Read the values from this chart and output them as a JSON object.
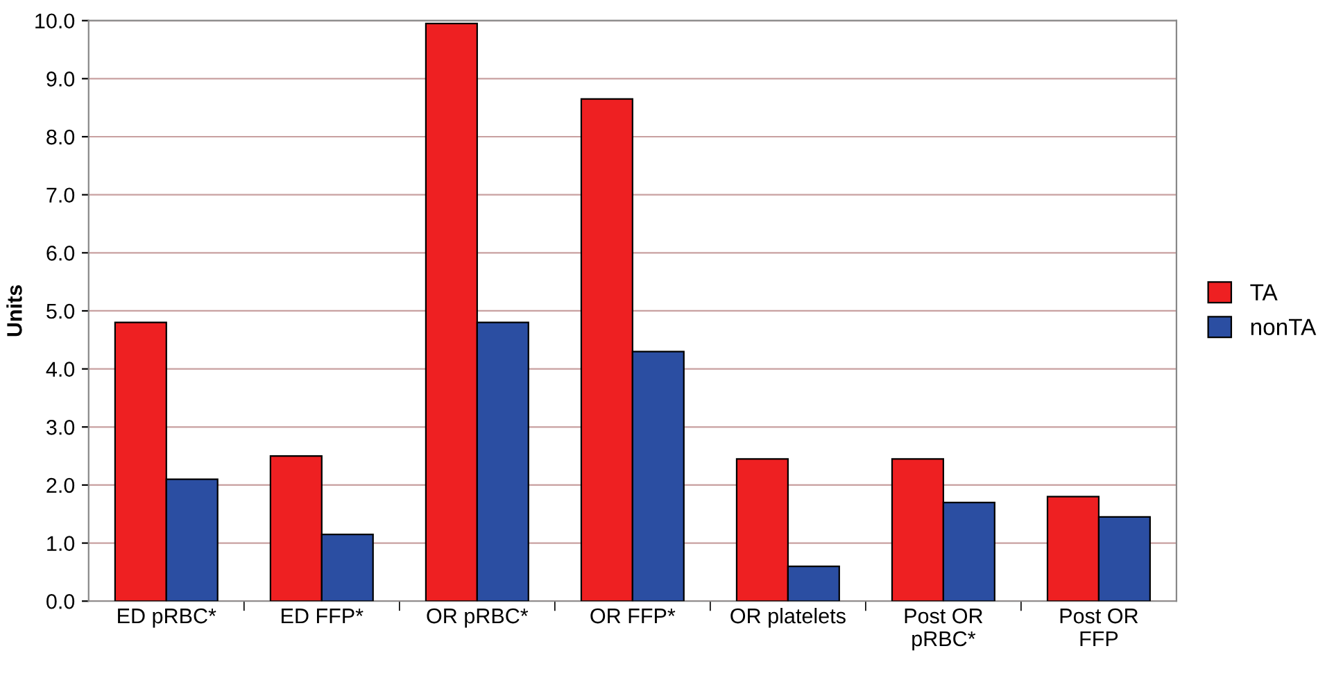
{
  "chart_data": {
    "type": "bar",
    "ylabel": "Units",
    "categories": [
      "ED pRBC*",
      "ED FFP*",
      "OR pRBC*",
      "OR FFP*",
      "OR platelets",
      "Post OR\npRBC*",
      "Post OR\nFFP"
    ],
    "series": [
      {
        "name": "TA",
        "color": "#ee2022",
        "values": [
          4.8,
          2.5,
          9.95,
          8.65,
          2.45,
          2.45,
          1.8
        ]
      },
      {
        "name": "nonTA",
        "color": "#2b4ea2",
        "values": [
          2.1,
          1.15,
          4.8,
          4.3,
          0.6,
          1.7,
          1.45
        ]
      }
    ],
    "ylim": [
      0,
      10
    ],
    "yticks": [
      {
        "value": 0,
        "label": "0.0"
      },
      {
        "value": 1,
        "label": "1.0"
      },
      {
        "value": 2,
        "label": "2.0"
      },
      {
        "value": 3,
        "label": "3.0"
      },
      {
        "value": 4,
        "label": "4.0"
      },
      {
        "value": 5,
        "label": "5.0"
      },
      {
        "value": 6,
        "label": "6.0"
      },
      {
        "value": 7,
        "label": "7.0"
      },
      {
        "value": 8,
        "label": "8.0"
      },
      {
        "value": 9,
        "label": "9.0"
      },
      {
        "value": 10,
        "label": "10.0"
      }
    ],
    "grid": "y",
    "legend": "right"
  }
}
